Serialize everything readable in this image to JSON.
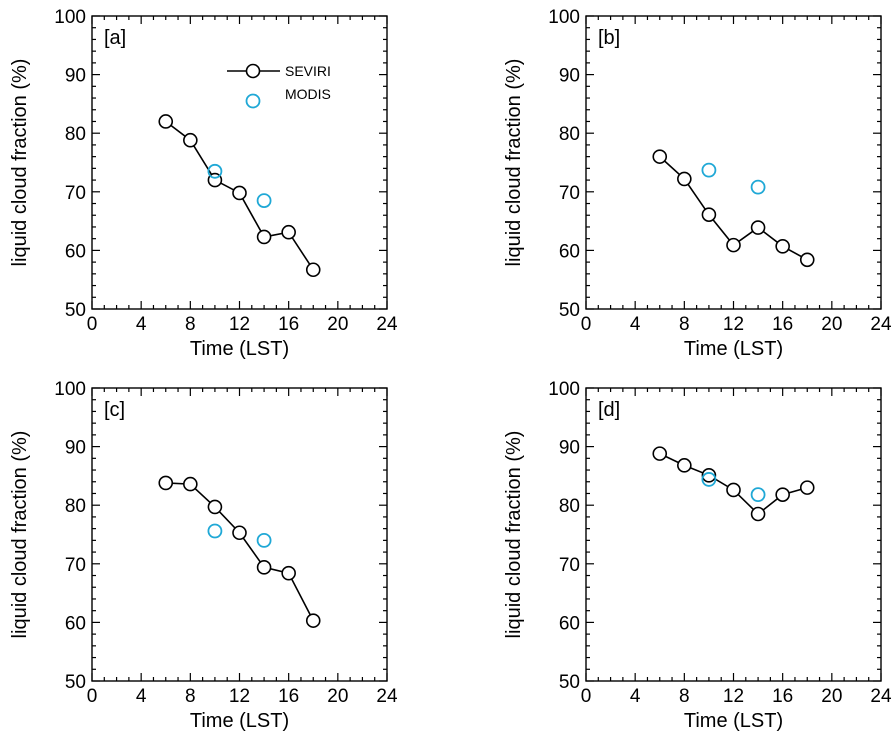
{
  "legend": {
    "seviri": "SEVIRI",
    "modis": "MODIS"
  },
  "colors": {
    "seviri": "#000000",
    "modis": "#1fa8d6"
  },
  "chart_data": [
    {
      "type": "line",
      "label": "[a]",
      "xlabel": "Time (LST)",
      "ylabel": "liquid cloud fraction (%)",
      "xlim": [
        0,
        24
      ],
      "ylim": [
        50,
        100
      ],
      "xticks": [
        0,
        4,
        8,
        12,
        16,
        20,
        24
      ],
      "yticks": [
        50,
        60,
        70,
        80,
        90,
        100
      ],
      "legend": "top-center",
      "series": [
        {
          "name": "SEVIRI",
          "x": [
            6,
            8,
            10,
            12,
            14,
            16,
            18
          ],
          "y": [
            82.0,
            78.8,
            72.0,
            69.8,
            62.3,
            63.1,
            56.7
          ]
        },
        {
          "name": "MODIS",
          "x": [
            10,
            14
          ],
          "y": [
            73.5,
            68.5
          ]
        }
      ]
    },
    {
      "type": "line",
      "label": "[b]",
      "xlabel": "Time (LST)",
      "ylabel": "liquid cloud fraction (%)",
      "xlim": [
        0,
        24
      ],
      "ylim": [
        50,
        100
      ],
      "xticks": [
        0,
        4,
        8,
        12,
        16,
        20,
        24
      ],
      "yticks": [
        50,
        60,
        70,
        80,
        90,
        100
      ],
      "series": [
        {
          "name": "SEVIRI",
          "x": [
            6,
            8,
            10,
            12,
            14,
            16,
            18
          ],
          "y": [
            76.0,
            72.2,
            66.1,
            60.9,
            63.9,
            60.7,
            58.4
          ]
        },
        {
          "name": "MODIS",
          "x": [
            10,
            14
          ],
          "y": [
            73.7,
            70.8
          ]
        }
      ]
    },
    {
      "type": "line",
      "label": "[c]",
      "xlabel": "Time (LST)",
      "ylabel": "liquid cloud fraction (%)",
      "xlim": [
        0,
        24
      ],
      "ylim": [
        50,
        100
      ],
      "xticks": [
        0,
        4,
        8,
        12,
        16,
        20,
        24
      ],
      "yticks": [
        50,
        60,
        70,
        80,
        90,
        100
      ],
      "series": [
        {
          "name": "SEVIRI",
          "x": [
            6,
            8,
            10,
            12,
            14,
            16,
            18
          ],
          "y": [
            83.8,
            83.6,
            79.7,
            75.3,
            69.4,
            68.4,
            60.3
          ]
        },
        {
          "name": "MODIS",
          "x": [
            10,
            14
          ],
          "y": [
            75.6,
            74.0
          ]
        }
      ]
    },
    {
      "type": "line",
      "label": "[d]",
      "xlabel": "Time (LST)",
      "ylabel": "liquid cloud fraction (%)",
      "xlim": [
        0,
        24
      ],
      "ylim": [
        50,
        100
      ],
      "xticks": [
        0,
        4,
        8,
        12,
        16,
        20,
        24
      ],
      "yticks": [
        50,
        60,
        70,
        80,
        90,
        100
      ],
      "series": [
        {
          "name": "SEVIRI",
          "x": [
            6,
            8,
            10,
            12,
            14,
            16,
            18
          ],
          "y": [
            88.8,
            86.8,
            85.1,
            82.6,
            78.5,
            81.8,
            83.0
          ]
        },
        {
          "name": "MODIS",
          "x": [
            10,
            14
          ],
          "y": [
            84.4,
            81.8
          ]
        }
      ]
    }
  ]
}
